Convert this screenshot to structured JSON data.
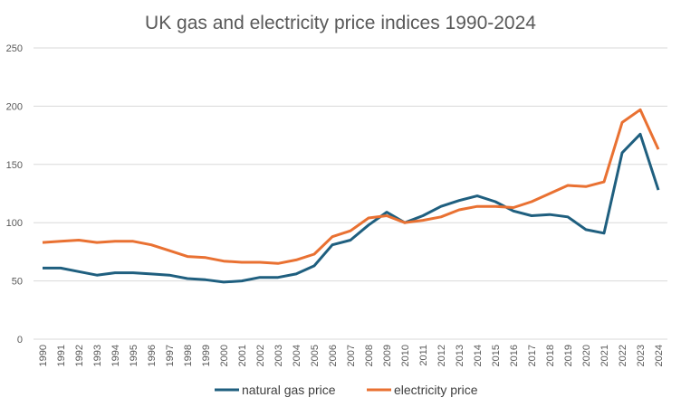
{
  "chart_data": {
    "type": "line",
    "title": "UK gas and electricity price indices 1990-2024",
    "xlabel": "",
    "ylabel": "",
    "ylim": [
      0,
      250
    ],
    "yticks": [
      0,
      50,
      100,
      150,
      200,
      250
    ],
    "grid": true,
    "legend_position": "bottom",
    "categories": [
      "1990",
      "1991",
      "1992",
      "1993",
      "1994",
      "1995",
      "1996",
      "1997",
      "1998",
      "1999",
      "2000",
      "2001",
      "2002",
      "2003",
      "2004",
      "2005",
      "2006",
      "2007",
      "2008",
      "2009",
      "2010",
      "2011",
      "2012",
      "2013",
      "2014",
      "2015",
      "2016",
      "2017",
      "2018",
      "2019",
      "2020",
      "2021",
      "2022",
      "2023",
      "2024"
    ],
    "series": [
      {
        "name": "natural gas price",
        "color": "#1f5f7f",
        "values": [
          61,
          61,
          58,
          55,
          57,
          57,
          56,
          55,
          52,
          51,
          49,
          50,
          53,
          53,
          56,
          63,
          81,
          85,
          98,
          109,
          100,
          106,
          114,
          119,
          123,
          118,
          110,
          106,
          107,
          105,
          94,
          91,
          160,
          176,
          128
        ]
      },
      {
        "name": "electricity price",
        "color": "#e97132",
        "values": [
          83,
          84,
          85,
          83,
          84,
          84,
          81,
          76,
          71,
          70,
          67,
          66,
          66,
          65,
          68,
          73,
          88,
          93,
          104,
          106,
          100,
          102,
          105,
          111,
          114,
          114,
          113,
          118,
          125,
          132,
          131,
          135,
          186,
          197,
          163
        ]
      }
    ]
  }
}
